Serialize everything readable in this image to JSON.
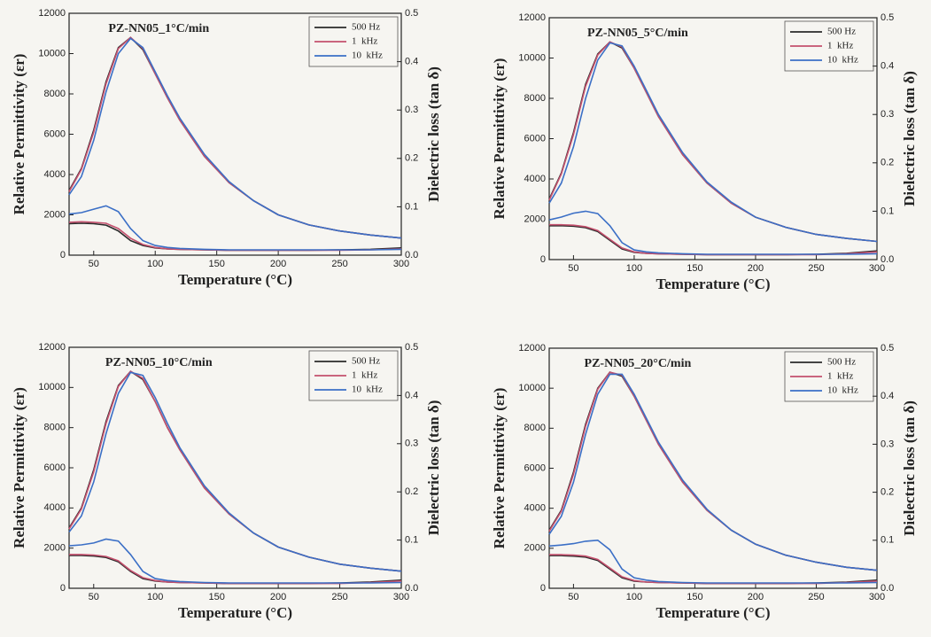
{
  "chart_data": [
    {
      "type": "line",
      "title": "PZ-NN05_1°C/min",
      "x_label": "Temperature (°C)",
      "y_label": "Relative Permittivity (εr)",
      "y2_label": "Dielectric loss (tan δ)",
      "x": [
        30,
        40,
        50,
        60,
        70,
        80,
        90,
        100,
        110,
        120,
        140,
        160,
        180,
        200,
        225,
        250,
        275,
        300
      ],
      "xlim": [
        30,
        300
      ],
      "xticks": [
        50,
        100,
        150,
        200,
        250,
        300
      ],
      "ylim": [
        0,
        12000
      ],
      "yticks": [
        0,
        2000,
        4000,
        6000,
        8000,
        10000,
        12000
      ],
      "y2lim": [
        0,
        0.5
      ],
      "y2ticks": [
        {
          "value": 0,
          "label": "0.0"
        },
        0.1,
        0.2,
        0.3,
        0.4,
        0.5
      ],
      "legend": "upper right",
      "series": [
        {
          "name": "500 Hz",
          "color": "#2a2a2a",
          "values": [
            3200,
            4300,
            6200,
            8600,
            10300,
            10800,
            10200,
            9000,
            7800,
            6700,
            4900,
            3600,
            2700,
            2000,
            1500,
            1200,
            1000,
            850
          ]
        },
        {
          "name": "1  kHz",
          "color": "#c4506e",
          "values": [
            3150,
            4250,
            6100,
            8500,
            10250,
            10800,
            10250,
            9000,
            7800,
            6700,
            4900,
            3600,
            2700,
            2000,
            1500,
            1200,
            1000,
            850
          ]
        },
        {
          "name": "10  kHz",
          "color": "#3b6fc6",
          "values": [
            3000,
            3900,
            5700,
            8100,
            10000,
            10750,
            10300,
            9100,
            7900,
            6800,
            5000,
            3650,
            2700,
            2000,
            1500,
            1200,
            1000,
            850
          ]
        },
        {
          "color": "#2a2a2a",
          "axis": "y2",
          "values": [
            0.065,
            0.066,
            0.065,
            0.062,
            0.05,
            0.03,
            0.02,
            0.015,
            0.013,
            0.012,
            0.011,
            0.01,
            0.01,
            0.01,
            0.01,
            0.011,
            0.012,
            0.015
          ]
        },
        {
          "color": "#c4506e",
          "axis": "y2",
          "values": [
            0.068,
            0.069,
            0.068,
            0.066,
            0.055,
            0.035,
            0.022,
            0.016,
            0.013,
            0.012,
            0.011,
            0.01,
            0.01,
            0.01,
            0.01,
            0.01,
            0.011,
            0.013
          ]
        },
        {
          "color": "#3b6fc6",
          "axis": "y2",
          "values": [
            0.085,
            0.088,
            0.095,
            0.102,
            0.09,
            0.055,
            0.03,
            0.02,
            0.016,
            0.014,
            0.012,
            0.011,
            0.011,
            0.011,
            0.011,
            0.011,
            0.011,
            0.012
          ]
        }
      ]
    },
    {
      "type": "line",
      "title": "PZ-NN05_5°C/min",
      "x_label": "Temperature (°C)",
      "y_label": "Relative Permittivity (εr)",
      "y2_label": "Dielectric loss (tan δ)",
      "x": [
        30,
        40,
        50,
        60,
        70,
        80,
        90,
        100,
        110,
        120,
        140,
        160,
        180,
        200,
        225,
        250,
        275,
        300
      ],
      "xlim": [
        30,
        300
      ],
      "xticks": [
        50,
        100,
        150,
        200,
        250,
        300
      ],
      "ylim": [
        0,
        12000
      ],
      "yticks": [
        0,
        2000,
        4000,
        6000,
        8000,
        10000,
        12000
      ],
      "y2lim": [
        0,
        0.5
      ],
      "y2ticks": [
        {
          "value": 0,
          "label": "0.0"
        },
        0.1,
        0.2,
        0.3,
        0.4,
        0.5
      ],
      "legend": "upper right",
      "series": [
        {
          "name": "500 Hz",
          "color": "#2a2a2a",
          "values": [
            3000,
            4300,
            6300,
            8700,
            10200,
            10800,
            10500,
            9500,
            8300,
            7100,
            5200,
            3800,
            2800,
            2100,
            1600,
            1250,
            1050,
            900
          ]
        },
        {
          "name": "1  kHz",
          "color": "#c4506e",
          "values": [
            2950,
            4250,
            6200,
            8600,
            10150,
            10800,
            10550,
            9500,
            8300,
            7100,
            5200,
            3800,
            2800,
            2100,
            1600,
            1250,
            1050,
            900
          ]
        },
        {
          "name": "10  kHz",
          "color": "#3b6fc6",
          "values": [
            2800,
            3800,
            5600,
            8000,
            9900,
            10750,
            10600,
            9600,
            8400,
            7200,
            5300,
            3850,
            2850,
            2100,
            1600,
            1250,
            1050,
            900
          ]
        },
        {
          "color": "#2a2a2a",
          "axis": "y2",
          "values": [
            0.07,
            0.07,
            0.069,
            0.066,
            0.058,
            0.04,
            0.022,
            0.015,
            0.013,
            0.012,
            0.011,
            0.01,
            0.01,
            0.01,
            0.01,
            0.011,
            0.013,
            0.018
          ]
        },
        {
          "color": "#c4506e",
          "axis": "y2",
          "values": [
            0.072,
            0.072,
            0.071,
            0.068,
            0.06,
            0.042,
            0.024,
            0.016,
            0.013,
            0.012,
            0.011,
            0.01,
            0.01,
            0.01,
            0.01,
            0.01,
            0.012,
            0.016
          ]
        },
        {
          "color": "#3b6fc6",
          "axis": "y2",
          "values": [
            0.082,
            0.088,
            0.096,
            0.1,
            0.095,
            0.07,
            0.035,
            0.02,
            0.016,
            0.014,
            0.012,
            0.011,
            0.011,
            0.011,
            0.011,
            0.011,
            0.011,
            0.012
          ]
        }
      ]
    },
    {
      "type": "line",
      "title": "PZ-NN05_10°C/min",
      "x_label": "Temperature (°C)",
      "y_label": "Relative Permittivity (εr)",
      "y2_label": "Dielectric loss (tan δ)",
      "x": [
        30,
        40,
        50,
        60,
        70,
        80,
        90,
        100,
        110,
        120,
        140,
        160,
        180,
        200,
        225,
        250,
        275,
        300
      ],
      "xlim": [
        30,
        300
      ],
      "xticks": [
        50,
        100,
        150,
        200,
        250,
        300
      ],
      "ylim": [
        0,
        12000
      ],
      "yticks": [
        0,
        2000,
        4000,
        6000,
        8000,
        10000,
        12000
      ],
      "y2lim": [
        0,
        0.5
      ],
      "y2ticks": [
        {
          "value": 0,
          "label": "0.0"
        },
        0.1,
        0.2,
        0.3,
        0.4,
        0.5
      ],
      "legend": "upper right",
      "series": [
        {
          "name": "500 Hz",
          "color": "#2a2a2a",
          "values": [
            3000,
            4000,
            5900,
            8300,
            10100,
            10800,
            10400,
            9300,
            8000,
            6900,
            5000,
            3700,
            2750,
            2050,
            1550,
            1200,
            1000,
            850
          ]
        },
        {
          "name": "1  kHz",
          "color": "#c4506e",
          "values": [
            2950,
            3950,
            5800,
            8200,
            10050,
            10800,
            10450,
            9300,
            8000,
            6900,
            5000,
            3700,
            2750,
            2050,
            1550,
            1200,
            1000,
            850
          ]
        },
        {
          "name": "10  kHz",
          "color": "#3b6fc6",
          "values": [
            2800,
            3600,
            5300,
            7700,
            9700,
            10750,
            10600,
            9500,
            8200,
            7000,
            5100,
            3750,
            2750,
            2050,
            1550,
            1200,
            1000,
            850
          ]
        },
        {
          "color": "#2a2a2a",
          "axis": "y2",
          "values": [
            0.068,
            0.068,
            0.067,
            0.064,
            0.055,
            0.035,
            0.02,
            0.015,
            0.013,
            0.012,
            0.011,
            0.01,
            0.01,
            0.01,
            0.01,
            0.011,
            0.013,
            0.017
          ]
        },
        {
          "color": "#c4506e",
          "axis": "y2",
          "values": [
            0.07,
            0.07,
            0.069,
            0.066,
            0.057,
            0.037,
            0.022,
            0.016,
            0.013,
            0.012,
            0.011,
            0.01,
            0.01,
            0.01,
            0.01,
            0.01,
            0.012,
            0.015
          ]
        },
        {
          "color": "#3b6fc6",
          "axis": "y2",
          "values": [
            0.088,
            0.09,
            0.094,
            0.102,
            0.098,
            0.07,
            0.035,
            0.02,
            0.016,
            0.014,
            0.012,
            0.011,
            0.011,
            0.011,
            0.011,
            0.011,
            0.011,
            0.012
          ]
        }
      ]
    },
    {
      "type": "line",
      "title": "PZ-NN05_20°C/min",
      "x_label": "Temperature (°C)",
      "y_label": "Relative Permittivity (εr)",
      "y2_label": "Dielectric loss (tan δ)",
      "x": [
        30,
        40,
        50,
        60,
        70,
        80,
        90,
        100,
        110,
        120,
        140,
        160,
        180,
        200,
        225,
        250,
        275,
        300
      ],
      "xlim": [
        30,
        300
      ],
      "xticks": [
        50,
        100,
        150,
        200,
        250,
        300
      ],
      "ylim": [
        0,
        12000
      ],
      "yticks": [
        0,
        2000,
        4000,
        6000,
        8000,
        10000,
        12000
      ],
      "y2lim": [
        0,
        0.5
      ],
      "y2ticks": [
        {
          "value": 0,
          "label": "0.0"
        },
        0.1,
        0.2,
        0.3,
        0.4,
        0.5
      ],
      "legend": "upper right",
      "series": [
        {
          "name": "500 Hz",
          "color": "#2a2a2a",
          "values": [
            2900,
            3900,
            5800,
            8200,
            10000,
            10800,
            10600,
            9600,
            8400,
            7200,
            5300,
            3900,
            2900,
            2200,
            1650,
            1300,
            1050,
            900
          ]
        },
        {
          "name": "1  kHz",
          "color": "#c4506e",
          "values": [
            2850,
            3850,
            5700,
            8100,
            9950,
            10800,
            10650,
            9600,
            8400,
            7200,
            5300,
            3900,
            2900,
            2200,
            1650,
            1300,
            1050,
            900
          ]
        },
        {
          "name": "10  kHz",
          "color": "#3b6fc6",
          "values": [
            2700,
            3600,
            5300,
            7700,
            9700,
            10700,
            10700,
            9700,
            8500,
            7300,
            5400,
            3950,
            2900,
            2200,
            1650,
            1300,
            1050,
            900
          ]
        },
        {
          "color": "#2a2a2a",
          "axis": "y2",
          "values": [
            0.068,
            0.068,
            0.067,
            0.065,
            0.058,
            0.04,
            0.022,
            0.015,
            0.013,
            0.012,
            0.011,
            0.01,
            0.01,
            0.01,
            0.01,
            0.011,
            0.013,
            0.017
          ]
        },
        {
          "color": "#c4506e",
          "axis": "y2",
          "values": [
            0.07,
            0.07,
            0.069,
            0.067,
            0.06,
            0.042,
            0.024,
            0.016,
            0.013,
            0.012,
            0.011,
            0.01,
            0.01,
            0.01,
            0.01,
            0.01,
            0.012,
            0.015
          ]
        },
        {
          "color": "#3b6fc6",
          "axis": "y2",
          "values": [
            0.088,
            0.09,
            0.093,
            0.098,
            0.1,
            0.08,
            0.04,
            0.022,
            0.017,
            0.014,
            0.012,
            0.011,
            0.011,
            0.011,
            0.011,
            0.011,
            0.011,
            0.012
          ]
        }
      ]
    }
  ]
}
